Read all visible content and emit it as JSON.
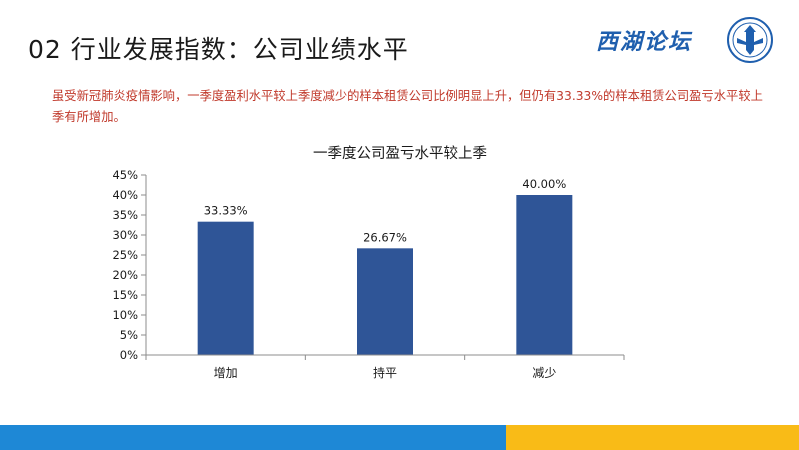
{
  "slide": {
    "title": "02 行业发展指数：公司业绩水平",
    "brand": "西湖论坛",
    "summary": "虽受新冠肺炎疫情影响，一季度盈利水平较上季度减少的样本租赁公司比例明显上升，但仍有33.33%的样本租赁公司盈亏水平较上季有所增加。"
  },
  "colors": {
    "bar": "#2f5597",
    "summary_text": "#c0392b",
    "footer_blue": "#1e88d6",
    "footer_yellow": "#f9bb17",
    "brand": "#1f5fae"
  },
  "icons": {
    "logo": "shield-logo-icon"
  },
  "chart_data": {
    "type": "bar",
    "title": "一季度公司盈亏水平较上季",
    "categories": [
      "增加",
      "持平",
      "减少"
    ],
    "values": [
      33.33,
      26.67,
      40.0
    ],
    "data_labels": [
      "33.33%",
      "26.67%",
      "40.00%"
    ],
    "ylim": [
      0,
      45
    ],
    "yticks": [
      "0%",
      "5%",
      "10%",
      "15%",
      "20%",
      "25%",
      "30%",
      "35%",
      "40%",
      "45%"
    ],
    "grid": false,
    "legend": "none",
    "xlabel": "",
    "ylabel": ""
  }
}
